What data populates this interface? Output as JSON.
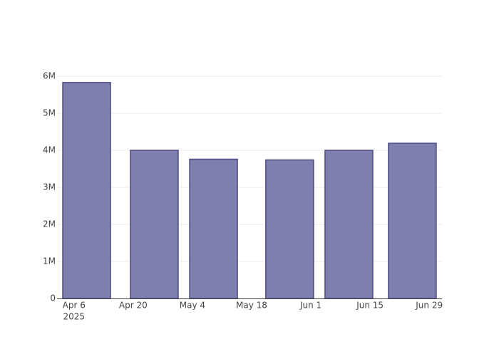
{
  "chart_data": {
    "type": "bar",
    "x": [
      "2025-04-09",
      "2025-04-25",
      "2025-05-09",
      "2025-05-27",
      "2025-06-10",
      "2025-06-25"
    ],
    "values": [
      5830000,
      4000000,
      3760000,
      3740000,
      4000000,
      4190000
    ],
    "color": "#7f7faf",
    "edge_color": "#4b4b82",
    "xlim": [
      "2025-04-02",
      "2025-07-02"
    ],
    "xticks": [
      {
        "value": "2025-04-06",
        "label": "Apr 6"
      },
      {
        "value": "2025-04-20",
        "label": "Apr 20"
      },
      {
        "value": "2025-05-04",
        "label": "May 4"
      },
      {
        "value": "2025-05-18",
        "label": "May 18"
      },
      {
        "value": "2025-06-01",
        "label": "Jun 1"
      },
      {
        "value": "2025-06-15",
        "label": "Jun 15"
      },
      {
        "value": "2025-06-29",
        "label": "Jun 29"
      }
    ],
    "xtick_year": "2025",
    "ylim": [
      0,
      6000000
    ],
    "yticks": [
      0,
      {
        "value": 1000000,
        "label": "1M"
      },
      {
        "value": 2000000,
        "label": "2M"
      },
      {
        "value": 3000000,
        "label": "3M"
      },
      {
        "value": 4000000,
        "label": "4M"
      },
      {
        "value": 5000000,
        "label": "5M"
      },
      {
        "value": 6000000,
        "label": "6M"
      }
    ],
    "grid": true
  }
}
